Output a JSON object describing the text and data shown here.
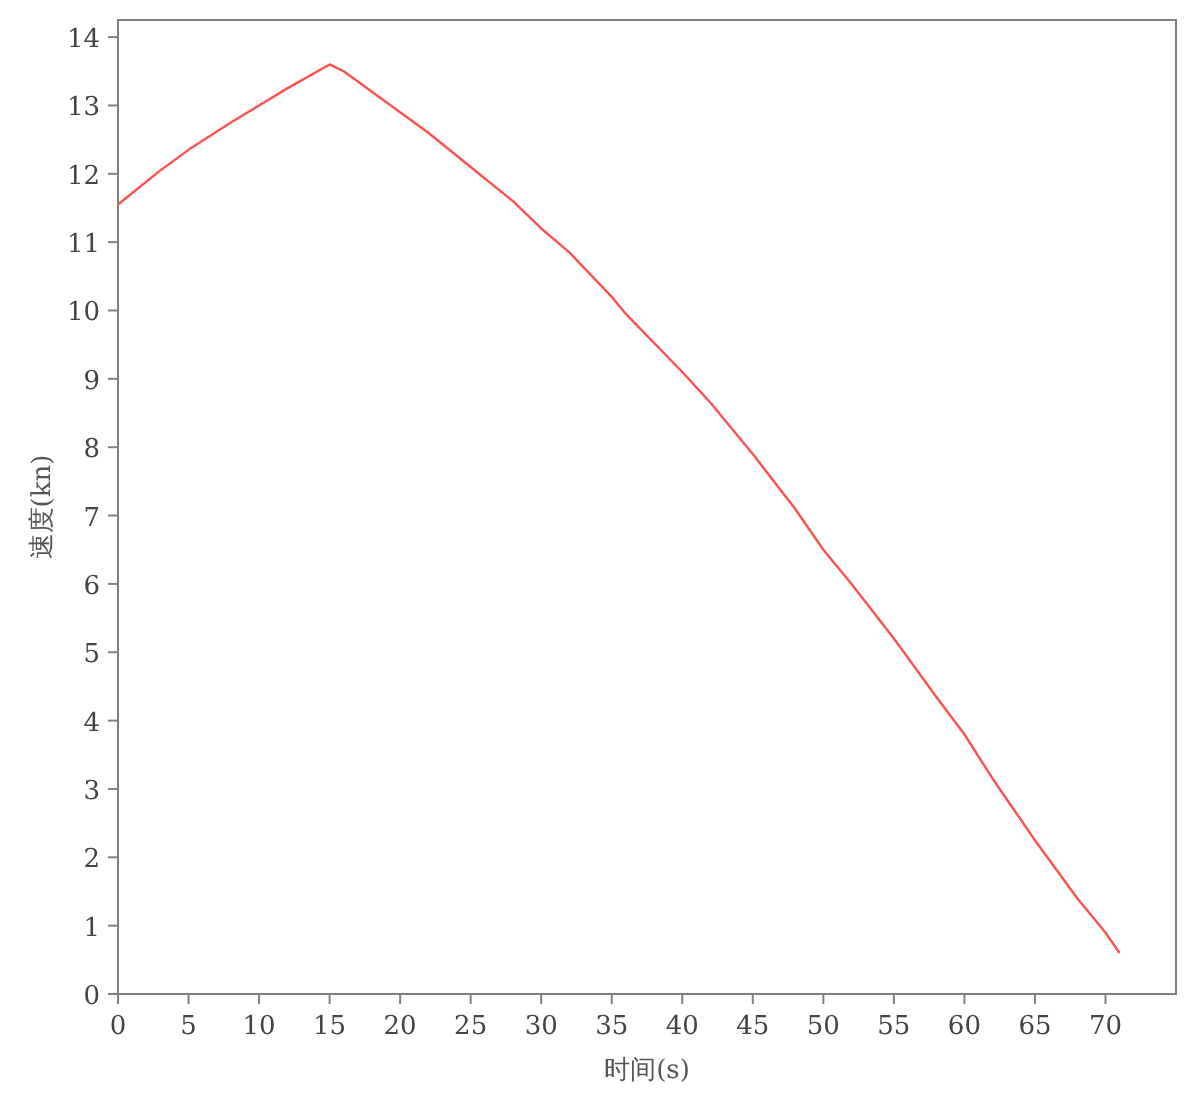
{
  "chart_data": {
    "type": "line",
    "xlabel": "时间(s)",
    "ylabel": "速度(kn)",
    "x": [
      0,
      3,
      5,
      8,
      10,
      12,
      15,
      16,
      18,
      20,
      22,
      25,
      28,
      30,
      32,
      35,
      36,
      40,
      42,
      45,
      48,
      50,
      52,
      55,
      58,
      60,
      62,
      63,
      65,
      68,
      70,
      71
    ],
    "series": [
      {
        "color": "#ff5050",
        "values": [
          11.55,
          12.05,
          12.35,
          12.75,
          13.0,
          13.25,
          13.6,
          13.5,
          13.2,
          12.9,
          12.6,
          12.1,
          11.6,
          11.2,
          10.85,
          10.2,
          9.95,
          9.1,
          8.65,
          7.9,
          7.1,
          6.5,
          6.0,
          5.2,
          4.35,
          3.8,
          3.15,
          2.85,
          2.25,
          1.4,
          0.9,
          0.6
        ]
      }
    ],
    "xlim": [
      0,
      75
    ],
    "ylim": [
      0,
      14.25
    ],
    "xticks": [
      0,
      5,
      10,
      15,
      20,
      25,
      30,
      35,
      40,
      45,
      50,
      55,
      60,
      65,
      70
    ],
    "yticks": [
      0,
      1,
      2,
      3,
      4,
      5,
      6,
      7,
      8,
      9,
      10,
      11,
      12,
      13,
      14
    ],
    "grid": false,
    "marker": "none",
    "line_style": "solid"
  }
}
